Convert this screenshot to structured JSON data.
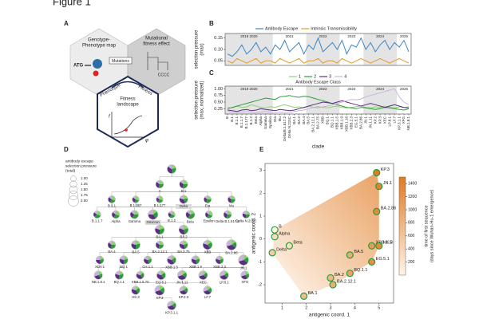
{
  "figure_title": "Figure 1",
  "panel_a": {
    "letter": "A",
    "gp_map": [
      "Genotype-",
      "Phenotype map"
    ],
    "fitness_effect": [
      "Mutational",
      "fitness effect"
    ],
    "atg": "ATG",
    "dna": "CCCC",
    "mutations": "Mutations",
    "phenotype": "Phenotype",
    "fitness": "Fitness",
    "landscape": [
      "Fitness",
      "landscape"
    ],
    "f": "f",
    "phi": "φ"
  },
  "chart_data": [
    {
      "letter": "B",
      "type": "line",
      "ylabel": [
        "selection pressure",
        "(max)"
      ],
      "ylim": [
        0.03,
        0.17
      ],
      "yticks": [
        0.05,
        {
          "value": 0.1,
          "label": "0.10"
        },
        0.15
      ],
      "periods": [
        {
          "label": "2019 2020",
          "from": "B",
          "to": "Epsilon",
          "shaded": true
        },
        {
          "label": "2021",
          "from": "Eta",
          "to": "BA.4",
          "shaded": false
        },
        {
          "label": "2022",
          "from": "BA.5",
          "to": "XBB.1.5",
          "shaded": true
        },
        {
          "label": "2023",
          "from": "XBB.1.9",
          "to": "BA.2.86",
          "shaded": false
        },
        {
          "label": "2024",
          "from": "JN.1",
          "to": "LF.7",
          "shaded": true
        },
        {
          "label": "2025",
          "from": "KP.3.1.1",
          "to": "NB.1.8.1",
          "shaded": false
        }
      ],
      "series": [
        {
          "name": "Antibody Escape",
          "color": "#3b86c6",
          "values": [
            0.08,
            0.07,
            0.09,
            0.12,
            0.08,
            0.1,
            0.13,
            0.09,
            0.11,
            0.08,
            0.12,
            0.1,
            0.14,
            0.09,
            0.11,
            0.13,
            0.08,
            0.12,
            0.1,
            0.15,
            0.09,
            0.11,
            0.13,
            0.1,
            0.14,
            0.08,
            0.12,
            0.11,
            0.15,
            0.1,
            0.13,
            0.09,
            0.12,
            0.14,
            0.1,
            0.13,
            0.11,
            0.14,
            0.09
          ]
        },
        {
          "name": "Intrinsic Transmissibility",
          "color": "#e39a2d",
          "values": [
            0.05,
            0.04,
            0.06,
            0.05,
            0.04,
            0.05,
            0.06,
            0.04,
            0.05,
            0.05,
            0.04,
            0.06,
            0.05,
            0.04,
            0.05,
            0.06,
            0.04,
            0.05,
            0.05,
            0.06,
            0.04,
            0.05,
            0.05,
            0.04,
            0.06,
            0.05,
            0.04,
            0.05,
            0.06,
            0.05,
            0.04,
            0.05,
            0.06,
            0.05,
            0.04,
            0.05,
            0.06,
            0.05,
            0.04
          ]
        }
      ]
    },
    {
      "letter": "C",
      "type": "line",
      "ylabel": [
        "selection pressure",
        "(max, normalized)"
      ],
      "xlabel": "clade",
      "legend_title": "Antibody Escape Class",
      "categories": [
        "B",
        "B.1",
        "B.1.1",
        "B.1.1.7",
        "B.1.177",
        "B.1.2",
        "Beta",
        "Alpha",
        "Gamma",
        "Epsilon",
        "Eta",
        "Mu",
        "Delta/B.1.617.2",
        "Delta N.215C",
        "BA.1",
        "BA.2",
        "BA.4",
        "BA.5",
        "BA.2.12.1",
        "BA.2.75",
        "XBB",
        "BQ.1",
        "BQ.1.1",
        "XBB.1.5",
        "XBB.1.9",
        "XBB.1.16",
        "XBB.2.3",
        "EG.5.1",
        "BA.2.86",
        "JN.1",
        "JN.1.11",
        "KP.2",
        "KP.3",
        "XEC",
        "LP.8.1",
        "LF.7",
        "KP.3.1.1",
        "XFG",
        "NB.1.8.1"
      ],
      "ylim": [
        0.05,
        1.1
      ],
      "yticks": [
        0.25,
        {
          "value": 0.5,
          "label": "0.50"
        },
        0.75,
        {
          "value": 1,
          "label": "1.00"
        }
      ],
      "periods": [
        {
          "label": "2019 2020",
          "from": "B",
          "to": "Epsilon",
          "shaded": true
        },
        {
          "label": "2021",
          "from": "Eta",
          "to": "BA.4",
          "shaded": false
        },
        {
          "label": "2022",
          "from": "BA.5",
          "to": "XBB.1.5",
          "shaded": true
        },
        {
          "label": "2023",
          "from": "XBB.1.9",
          "to": "BA.2.86",
          "shaded": false
        },
        {
          "label": "2024",
          "from": "JN.1",
          "to": "LF.7",
          "shaded": true
        },
        {
          "label": "2025",
          "from": "KP.3.1.1",
          "to": "NB.1.8.1",
          "shaded": false
        }
      ],
      "series": [
        {
          "name": "1",
          "color": "#8fd175",
          "values": [
            0.3,
            0.28,
            0.35,
            0.3,
            0.32,
            0.4,
            0.35,
            0.3,
            0.28,
            0.33,
            0.3,
            0.36,
            0.4,
            0.35,
            0.3,
            0.32,
            0.28,
            0.35,
            0.3,
            0.33,
            0.3,
            0.28,
            0.32,
            0.35,
            0.3,
            0.28,
            0.3,
            0.33,
            0.35,
            0.3,
            0.28,
            0.32,
            0.3,
            0.35,
            0.3,
            0.28,
            0.32,
            0.3,
            0.33
          ]
        },
        {
          "name": "2",
          "color": "#2a9d3a",
          "values": [
            0.25,
            0.3,
            0.35,
            0.4,
            0.45,
            0.5,
            0.55,
            0.6,
            0.65,
            0.62,
            0.6,
            0.7,
            0.72,
            0.75,
            0.7,
            0.68,
            0.72,
            0.7,
            0.65,
            0.6,
            0.55,
            0.5,
            0.45,
            0.4,
            0.35,
            0.3,
            0.28,
            0.25,
            0.3,
            0.28,
            0.25,
            0.22,
            0.25,
            0.3,
            0.28,
            0.25,
            0.22,
            0.2,
            0.25
          ]
        },
        {
          "name": "3",
          "color": "#5b2c83",
          "values": [
            0.2,
            0.18,
            0.15,
            0.2,
            0.22,
            0.18,
            0.2,
            0.25,
            0.22,
            0.2,
            0.18,
            0.22,
            0.2,
            0.18,
            0.2,
            0.25,
            0.3,
            0.35,
            0.4,
            0.45,
            0.5,
            0.48,
            0.45,
            0.5,
            0.55,
            0.5,
            0.45,
            0.4,
            0.35,
            0.4,
            0.45,
            0.4,
            0.35,
            0.3,
            0.35,
            0.4,
            0.35,
            0.3,
            0.28
          ]
        },
        {
          "name": "4",
          "color": "#c9b3db",
          "values": [
            0.15,
            0.12,
            0.1,
            0.12,
            0.15,
            0.12,
            0.1,
            0.12,
            0.15,
            0.12,
            0.1,
            0.12,
            0.1,
            0.12,
            0.15,
            0.18,
            0.2,
            0.25,
            0.3,
            0.28,
            0.32,
            0.35,
            0.4,
            0.45,
            0.5,
            0.55,
            0.6,
            0.58,
            0.62,
            0.7,
            0.75,
            0.8,
            0.85,
            0.9,
            0.95,
            1.0,
            0.7,
            0.5,
            0.4
          ]
        }
      ]
    },
    {
      "letter": "E",
      "type": "scatter",
      "xlabel": "antigenic coord. 1",
      "ylabel": "antigenic coord. 2",
      "xlim": [
        0.3,
        5.6
      ],
      "ylim": [
        -2.8,
        3.3
      ],
      "xticks": [
        1,
        2,
        3,
        4,
        5
      ],
      "yticks": [
        -2,
        -1,
        0,
        1,
        2,
        3
      ],
      "points": [
        {
          "label": "B",
          "x": 0.7,
          "y": 0.4,
          "days": 0
        },
        {
          "label": "Alpha",
          "x": 0.7,
          "y": 0.1,
          "days": 300
        },
        {
          "label": "Beta",
          "x": 1.3,
          "y": -0.3,
          "days": 300
        },
        {
          "label": "Delta",
          "x": 0.6,
          "y": -0.6,
          "days": 500
        },
        {
          "label": "BA.1",
          "x": 1.9,
          "y": -2.5,
          "days": 700
        },
        {
          "label": "BA.2",
          "x": 3.0,
          "y": -1.7,
          "days": 750
        },
        {
          "label": "BA.2.12.1",
          "x": 3.1,
          "y": -2.0,
          "days": 850
        },
        {
          "label": "BA.5",
          "x": 3.8,
          "y": -0.7,
          "days": 900
        },
        {
          "label": "BQ.1.1",
          "x": 3.8,
          "y": -1.5,
          "days": 1000
        },
        {
          "label": "XBB.1.5",
          "x": 4.7,
          "y": -0.3,
          "days": 1100
        },
        {
          "label": "EG.5.1",
          "x": 4.7,
          "y": -1.0,
          "days": 1250
        },
        {
          "label": "HK.3",
          "x": 5.0,
          "y": -0.3,
          "days": 1300
        },
        {
          "label": "BA.2.86",
          "x": 4.9,
          "y": 1.2,
          "days": 1300
        },
        {
          "label": "JN.1",
          "x": 5.0,
          "y": 2.3,
          "days": 1400
        },
        {
          "label": "KP.3",
          "x": 4.9,
          "y": 2.9,
          "days": 1500
        }
      ],
      "colorbar": {
        "label": [
          "time of first sequence",
          "(days since Wuhan-Hu-1 emergence)"
        ],
        "lim": [
          0,
          1500
        ],
        "ticks": [
          200,
          400,
          600,
          800,
          1000,
          1200,
          1400
        ],
        "colors": [
          "#fff4e8",
          "#e07b24"
        ]
      }
    }
  ],
  "tree": {
    "letter": "D",
    "legend_title": [
      "antibody escape",
      "selection pressure",
      "(total)"
    ],
    "legend_sizes": [
      {
        "value": 1,
        "label": "1.00"
      },
      1.25,
      {
        "value": 1.5,
        "label": "1.50"
      },
      1.75,
      {
        "value": 2,
        "label": "2.00"
      }
    ],
    "nodes": [
      {
        "label": null,
        "parent": null,
        "pressure": 1.6,
        "classes": [
          20,
          30,
          35,
          15
        ]
      },
      {
        "label": "A",
        "parent": 0,
        "pressure": 1.4,
        "classes": [
          25,
          30,
          30,
          15
        ]
      },
      {
        "label": "B.1",
        "parent": 0,
        "pressure": 1.5,
        "classes": [
          25,
          30,
          30,
          15
        ]
      },
      {
        "label": "B.1.1",
        "parent": 2,
        "pressure": 1.3,
        "classes": [
          30,
          30,
          25,
          15
        ]
      },
      {
        "label": "B.1.367",
        "parent": 2,
        "pressure": 1.2,
        "classes": [
          30,
          25,
          30,
          15
        ]
      },
      {
        "label": "B.1.177",
        "parent": 2,
        "pressure": 1.2,
        "classes": [
          30,
          30,
          25,
          15
        ]
      },
      {
        "label": "Delta",
        "parent": 2,
        "pressure": 1.5,
        "classes": [
          20,
          25,
          35,
          20
        ],
        "highlight": true
      },
      {
        "label": "Eta",
        "parent": 2,
        "pressure": 1.3,
        "classes": [
          25,
          35,
          25,
          15
        ]
      },
      {
        "label": "Mu",
        "parent": 2,
        "pressure": 1.3,
        "classes": [
          25,
          30,
          30,
          15
        ]
      },
      {
        "label": "B.1.1.7",
        "parent": 3,
        "pressure": 1.3,
        "classes": [
          30,
          35,
          20,
          15
        ]
      },
      {
        "label": "Alpha",
        "parent": 3,
        "pressure": 1.4,
        "classes": [
          30,
          30,
          25,
          15
        ]
      },
      {
        "label": "Gamma",
        "parent": 3,
        "pressure": 1.5,
        "classes": [
          25,
          35,
          25,
          15
        ]
      },
      {
        "label": "Omicron",
        "parent": 3,
        "pressure": 1.8,
        "classes": [
          15,
          25,
          35,
          25
        ],
        "highlight": true
      },
      {
        "label": "B.1.2",
        "parent": 4,
        "pressure": 1.2,
        "classes": [
          30,
          30,
          25,
          15
        ]
      },
      {
        "label": "Beta",
        "parent": 4,
        "pressure": 1.6,
        "classes": [
          20,
          40,
          25,
          15
        ]
      },
      {
        "label": "Epsilon",
        "parent": 5,
        "pressure": 1.3,
        "classes": [
          30,
          30,
          25,
          15
        ]
      },
      {
        "label": "Delta B.1.617.2",
        "parent": 6,
        "pressure": 1.4,
        "classes": [
          25,
          30,
          30,
          15
        ]
      },
      {
        "label": "Delta N.215C",
        "parent": 6,
        "pressure": 1.3,
        "classes": [
          25,
          25,
          30,
          20
        ]
      },
      {
        "label": "BA.1",
        "parent": 12,
        "pressure": 1.7,
        "classes": [
          20,
          30,
          30,
          20
        ]
      },
      {
        "label": "BA.2",
        "parent": 12,
        "pressure": 1.7,
        "classes": [
          20,
          25,
          35,
          20
        ]
      },
      {
        "label": "BA.4",
        "parent": 19,
        "pressure": 1.4,
        "classes": [
          25,
          30,
          30,
          15
        ]
      },
      {
        "label": "BA.5",
        "parent": 19,
        "pressure": 1.6,
        "classes": [
          20,
          30,
          30,
          20
        ]
      },
      {
        "label": "BA.2.12.1",
        "parent": 19,
        "pressure": 1.4,
        "classes": [
          25,
          30,
          30,
          15
        ]
      },
      {
        "label": "BA.2.75",
        "parent": 19,
        "pressure": 1.5,
        "classes": [
          20,
          25,
          35,
          20
        ]
      },
      {
        "label": "XBB",
        "parent": 19,
        "pressure": 1.7,
        "classes": [
          15,
          25,
          40,
          20
        ]
      },
      {
        "label": "BA.2.86",
        "parent": 19,
        "pressure": 1.9,
        "classes": [
          15,
          20,
          35,
          30
        ]
      },
      {
        "label": "XDV.1",
        "parent": 25,
        "pressure": 1.4,
        "classes": [
          20,
          25,
          30,
          25
        ]
      },
      {
        "label": "BQ.1",
        "parent": 21,
        "pressure": 1.5,
        "classes": [
          20,
          30,
          30,
          20
        ]
      },
      {
        "label": "CH.1.1",
        "parent": 23,
        "pressure": 1.4,
        "classes": [
          20,
          25,
          35,
          20
        ]
      },
      {
        "label": "XBB.1.5",
        "parent": 24,
        "pressure": 1.6,
        "classes": [
          15,
          25,
          40,
          20
        ]
      },
      {
        "label": "XBB.1.9",
        "parent": 24,
        "pressure": 1.5,
        "classes": [
          20,
          25,
          35,
          20
        ]
      },
      {
        "label": "XBB.2.3",
        "parent": 24,
        "pressure": 1.4,
        "classes": [
          20,
          25,
          35,
          20
        ]
      },
      {
        "label": "JN.1",
        "parent": 25,
        "pressure": 1.9,
        "classes": [
          15,
          20,
          35,
          30
        ]
      },
      {
        "label": "NB.1.8.1",
        "parent": 26,
        "pressure": 1.5,
        "classes": [
          20,
          20,
          30,
          30
        ]
      },
      {
        "label": "BQ.1.1",
        "parent": 27,
        "pressure": 1.5,
        "classes": [
          20,
          30,
          30,
          20
        ]
      },
      {
        "label": "XBB.1.5.70",
        "parent": 29,
        "pressure": 1.4,
        "classes": [
          15,
          25,
          40,
          20
        ]
      },
      {
        "label": "EG.5.1",
        "parent": 30,
        "pressure": 1.6,
        "classes": [
          15,
          25,
          40,
          20
        ]
      },
      {
        "label": "JN.1.11",
        "parent": 32,
        "pressure": 1.7,
        "classes": [
          15,
          20,
          35,
          30
        ]
      },
      {
        "label": "XEC",
        "parent": 32,
        "pressure": 1.6,
        "classes": [
          15,
          20,
          35,
          30
        ]
      },
      {
        "label": "LP.8.1",
        "parent": 32,
        "pressure": 1.6,
        "classes": [
          15,
          20,
          35,
          30
        ]
      },
      {
        "label": "XFG",
        "parent": 32,
        "pressure": 1.5,
        "classes": [
          20,
          20,
          30,
          30
        ]
      },
      {
        "label": "HK.3",
        "parent": 36,
        "pressure": 1.5,
        "classes": [
          15,
          25,
          40,
          20
        ]
      },
      {
        "label": "KP.3",
        "parent": 37,
        "pressure": 1.8,
        "classes": [
          15,
          20,
          35,
          30
        ]
      },
      {
        "label": "KP.2.3",
        "parent": 37,
        "pressure": 1.5,
        "classes": [
          15,
          20,
          35,
          30
        ]
      },
      {
        "label": "LF.7",
        "parent": 37,
        "pressure": 1.5,
        "classes": [
          15,
          20,
          35,
          30
        ]
      },
      {
        "label": "KP.3.1.1",
        "parent": 42,
        "pressure": 1.6,
        "classes": [
          15,
          20,
          35,
          30
        ]
      }
    ]
  }
}
